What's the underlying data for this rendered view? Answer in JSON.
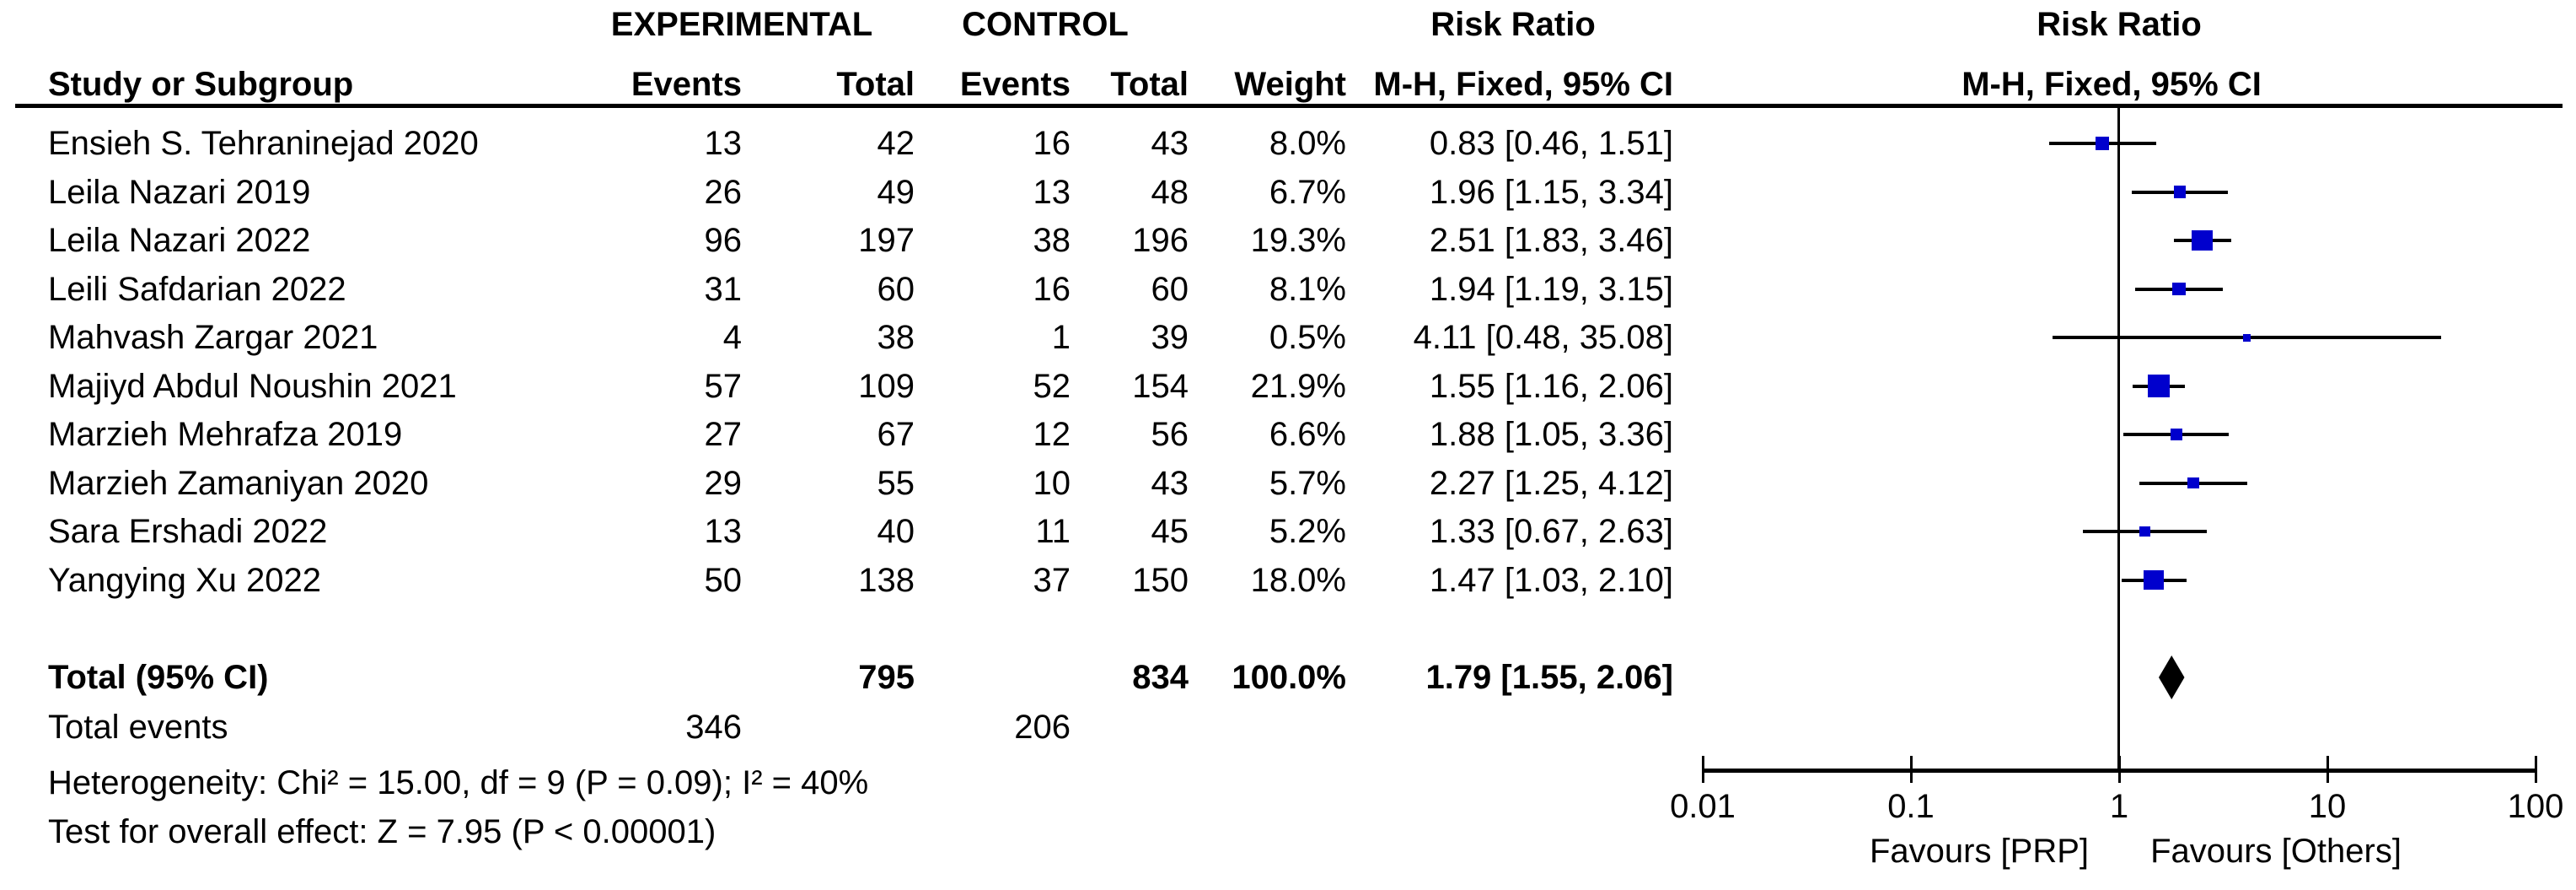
{
  "table": {
    "group_headers": {
      "experimental": "EXPERIMENTAL",
      "control": "CONTROL",
      "risk_ratio": "Risk Ratio",
      "risk_ratio_plot": "Risk Ratio"
    },
    "columns": {
      "study": "Study or Subgroup",
      "events_experimental": "Events",
      "total_experimental": "Total",
      "events_control": "Events",
      "total_control": "Total",
      "weight": "Weight",
      "mh_fixed_ci": "M-H, Fixed, 95% CI",
      "mh_fixed_ci_plot": "M-H, Fixed, 95% CI"
    },
    "rows": [
      {
        "study": "Ensieh S. Tehraninejad 2020",
        "events_experimental": "13",
        "total_experimental": "42",
        "events_control": "16",
        "total_control": "43",
        "weight": "8.0%",
        "weight_value": 8.0,
        "rr_text": "0.83 [0.46, 1.51]",
        "rr": 0.83,
        "ci_low": 0.46,
        "ci_high": 1.51
      },
      {
        "study": "Leila Nazari 2019",
        "events_experimental": "26",
        "total_experimental": "49",
        "events_control": "13",
        "total_control": "48",
        "weight": "6.7%",
        "weight_value": 6.7,
        "rr_text": "1.96 [1.15, 3.34]",
        "rr": 1.96,
        "ci_low": 1.15,
        "ci_high": 3.34
      },
      {
        "study": "Leila Nazari 2022",
        "events_experimental": "96",
        "total_experimental": "197",
        "events_control": "38",
        "total_control": "196",
        "weight": "19.3%",
        "weight_value": 19.3,
        "rr_text": "2.51 [1.83, 3.46]",
        "rr": 2.51,
        "ci_low": 1.83,
        "ci_high": 3.46
      },
      {
        "study": "Leili Safdarian 2022",
        "events_experimental": "31",
        "total_experimental": "60",
        "events_control": "16",
        "total_control": "60",
        "weight": "8.1%",
        "weight_value": 8.1,
        "rr_text": "1.94 [1.19, 3.15]",
        "rr": 1.94,
        "ci_low": 1.19,
        "ci_high": 3.15
      },
      {
        "study": "Mahvash Zargar 2021",
        "events_experimental": "4",
        "total_experimental": "38",
        "events_control": "1",
        "total_control": "39",
        "weight": "0.5%",
        "weight_value": 0.5,
        "rr_text": "4.11 [0.48, 35.08]",
        "rr": 4.11,
        "ci_low": 0.48,
        "ci_high": 35.08
      },
      {
        "study": "Majiyd Abdul Noushin 2021",
        "events_experimental": "57",
        "total_experimental": "109",
        "events_control": "52",
        "total_control": "154",
        "weight": "21.9%",
        "weight_value": 21.9,
        "rr_text": "1.55 [1.16, 2.06]",
        "rr": 1.55,
        "ci_low": 1.16,
        "ci_high": 2.06
      },
      {
        "study": "Marzieh Mehrafza 2019",
        "events_experimental": "27",
        "total_experimental": "67",
        "events_control": "12",
        "total_control": "56",
        "weight": "6.6%",
        "weight_value": 6.6,
        "rr_text": "1.88 [1.05, 3.36]",
        "rr": 1.88,
        "ci_low": 1.05,
        "ci_high": 3.36
      },
      {
        "study": "Marzieh Zamaniyan 2020",
        "events_experimental": "29",
        "total_experimental": "55",
        "events_control": "10",
        "total_control": "43",
        "weight": "5.7%",
        "weight_value": 5.7,
        "rr_text": "2.27 [1.25, 4.12]",
        "rr": 2.27,
        "ci_low": 1.25,
        "ci_high": 4.12
      },
      {
        "study": "Sara Ershadi 2022",
        "events_experimental": "13",
        "total_experimental": "40",
        "events_control": "11",
        "total_control": "45",
        "weight": "5.2%",
        "weight_value": 5.2,
        "rr_text": "1.33 [0.67, 2.63]",
        "rr": 1.33,
        "ci_low": 0.67,
        "ci_high": 2.63
      },
      {
        "study": "Yangying Xu 2022",
        "events_experimental": "50",
        "total_experimental": "138",
        "events_control": "37",
        "total_control": "150",
        "weight": "18.0%",
        "weight_value": 18.0,
        "rr_text": "1.47 [1.03, 2.10]",
        "rr": 1.47,
        "ci_low": 1.03,
        "ci_high": 2.1
      }
    ],
    "totals": {
      "label": "Total (95% CI)",
      "total_experimental": "795",
      "total_control": "834",
      "weight": "100.0%",
      "rr_text": "1.79 [1.55, 2.06]",
      "rr": 1.79,
      "ci_low": 1.55,
      "ci_high": 2.06
    },
    "total_events": {
      "label": "Total events",
      "experimental": "346",
      "control": "206"
    },
    "heterogeneity": "Heterogeneity: Chi² = 15.00, df = 9 (P = 0.09); I² = 40%",
    "overall_effect": "Test for overall effect: Z = 7.95 (P < 0.00001)"
  },
  "plot": {
    "axis_ticks": [
      "0.01",
      "0.1",
      "1",
      "10",
      "100"
    ],
    "favours_left": "Favours [PRP]",
    "favours_right": "Favours [Others]",
    "colors": {
      "marker": "#0000CD",
      "ci_line": "#000000",
      "diamond": "#000000",
      "axis": "#000000"
    }
  },
  "chart_data": {
    "type": "scatter",
    "subtype": "forest_plot",
    "title": "Risk Ratio",
    "method": "M-H, Fixed, 95% CI",
    "x_scale": "log",
    "xlim": [
      0.01,
      100
    ],
    "x_ticks": [
      0.01,
      0.1,
      1,
      10,
      100
    ],
    "xlabel": "Favours [PRP] (left) / Favours [Others] (right)",
    "studies": [
      {
        "name": "Ensieh S. Tehraninejad 2020",
        "rr": 0.83,
        "ci_low": 0.46,
        "ci_high": 1.51,
        "weight_pct": 8.0
      },
      {
        "name": "Leila Nazari 2019",
        "rr": 1.96,
        "ci_low": 1.15,
        "ci_high": 3.34,
        "weight_pct": 6.7
      },
      {
        "name": "Leila Nazari 2022",
        "rr": 2.51,
        "ci_low": 1.83,
        "ci_high": 3.46,
        "weight_pct": 19.3
      },
      {
        "name": "Leili Safdarian 2022",
        "rr": 1.94,
        "ci_low": 1.19,
        "ci_high": 3.15,
        "weight_pct": 8.1
      },
      {
        "name": "Mahvash Zargar 2021",
        "rr": 4.11,
        "ci_low": 0.48,
        "ci_high": 35.08,
        "weight_pct": 0.5
      },
      {
        "name": "Majiyd Abdul Noushin 2021",
        "rr": 1.55,
        "ci_low": 1.16,
        "ci_high": 2.06,
        "weight_pct": 21.9
      },
      {
        "name": "Marzieh Mehrafza 2019",
        "rr": 1.88,
        "ci_low": 1.05,
        "ci_high": 3.36,
        "weight_pct": 6.6
      },
      {
        "name": "Marzieh Zamaniyan 2020",
        "rr": 2.27,
        "ci_low": 1.25,
        "ci_high": 4.12,
        "weight_pct": 5.7
      },
      {
        "name": "Sara Ershadi 2022",
        "rr": 1.33,
        "ci_low": 0.67,
        "ci_high": 2.63,
        "weight_pct": 5.2
      },
      {
        "name": "Yangying Xu 2022",
        "rr": 1.47,
        "ci_low": 1.03,
        "ci_high": 2.1,
        "weight_pct": 18.0
      }
    ],
    "pooled": {
      "name": "Total (95% CI)",
      "rr": 1.79,
      "ci_low": 1.55,
      "ci_high": 2.06,
      "weight_pct": 100.0
    }
  }
}
